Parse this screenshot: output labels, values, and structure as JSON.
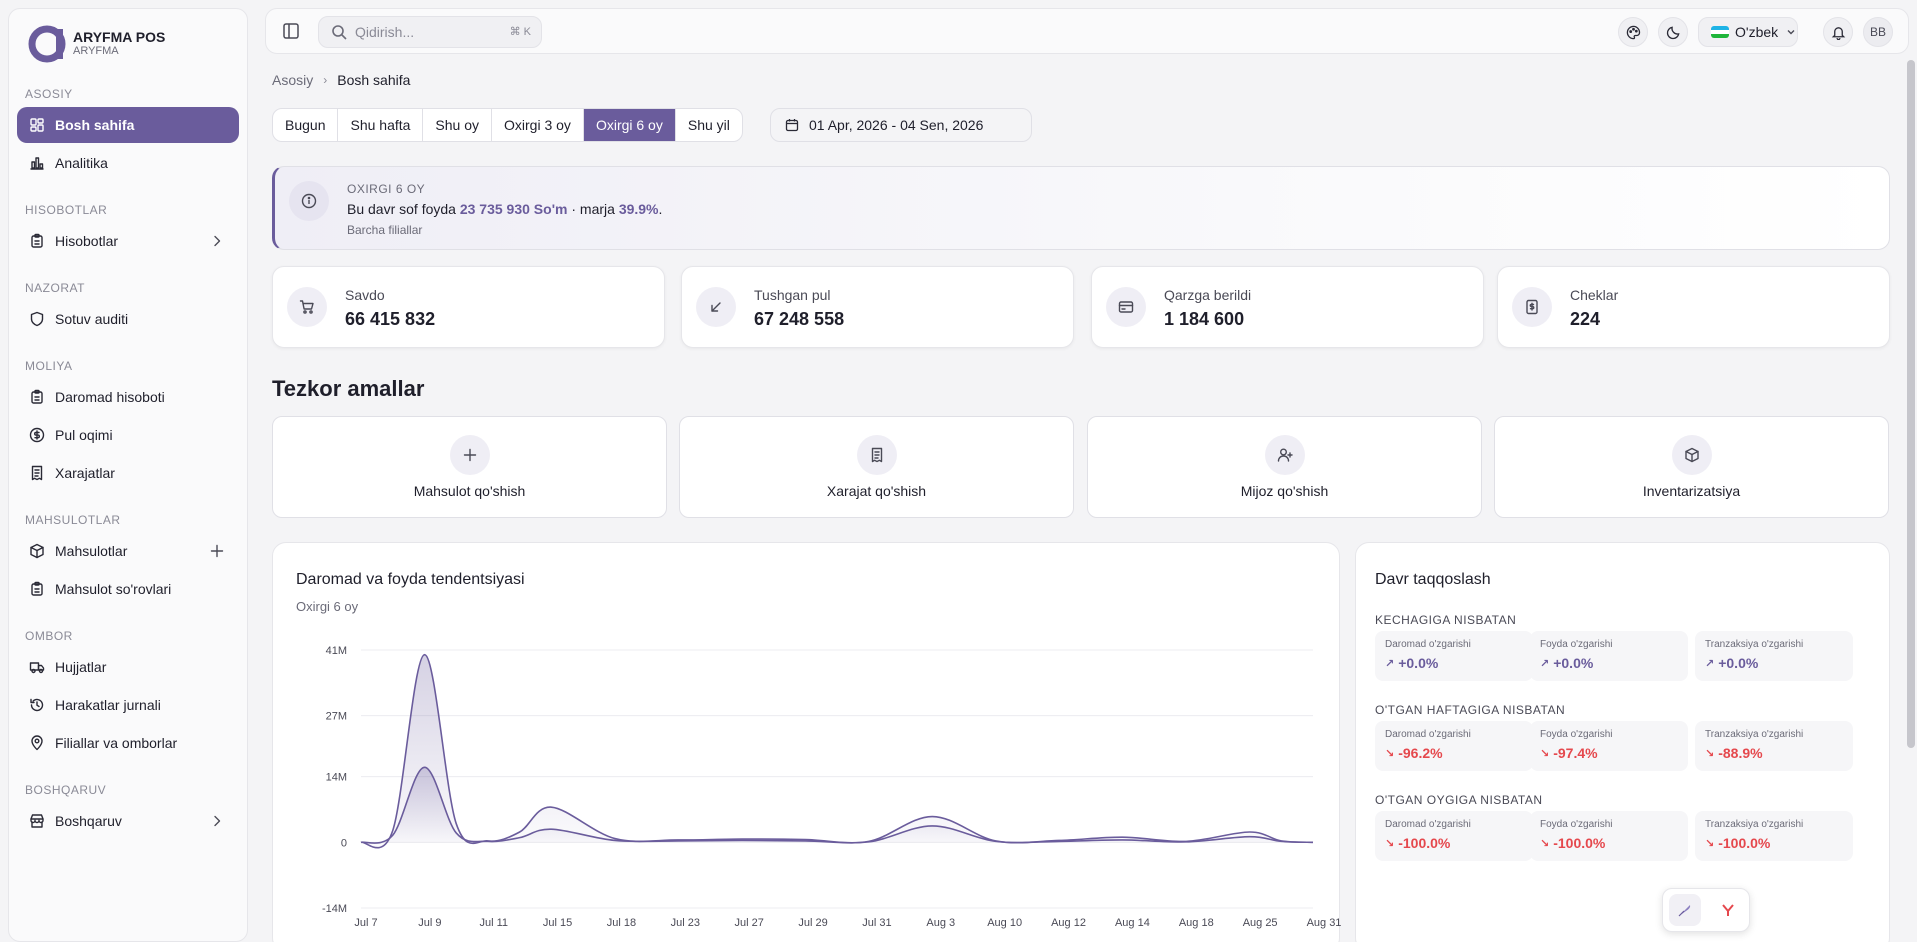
{
  "app": {
    "title": "ARYFMA POS",
    "subtitle": "ARYFMA"
  },
  "sidebar": {
    "groups": [
      {
        "label": "ASOSIY",
        "items": [
          {
            "label": "Bosh sahifa",
            "icon": "dashboard-icon",
            "active": true
          },
          {
            "label": "Analitika",
            "icon": "bar-chart-icon"
          }
        ]
      },
      {
        "label": "HISOBOTLAR",
        "items": [
          {
            "label": "Hisobotlar",
            "icon": "clipboard-icon",
            "tail": "chevron-right-icon"
          }
        ]
      },
      {
        "label": "NAZORAT",
        "items": [
          {
            "label": "Sotuv auditi",
            "icon": "shield-icon"
          }
        ]
      },
      {
        "label": "MOLIYA",
        "items": [
          {
            "label": "Daromad hisoboti",
            "icon": "clipboard-icon"
          },
          {
            "label": "Pul oqimi",
            "icon": "dollar-circle-icon"
          },
          {
            "label": "Xarajatlar",
            "icon": "receipt-icon"
          }
        ]
      },
      {
        "label": "MAHSULOTLAR",
        "items": [
          {
            "label": "Mahsulotlar",
            "icon": "box-icon",
            "tail": "plus-icon"
          },
          {
            "label": "Mahsulot so'rovlari",
            "icon": "clipboard-icon"
          }
        ]
      },
      {
        "label": "OMBOR",
        "items": [
          {
            "label": "Hujjatlar",
            "icon": "truck-icon"
          },
          {
            "label": "Harakatlar jurnali",
            "icon": "history-icon"
          },
          {
            "label": "Filiallar va omborlar",
            "icon": "map-pin-icon"
          }
        ]
      },
      {
        "label": "BOSHQARUV",
        "items": [
          {
            "label": "Boshqaruv",
            "icon": "store-icon",
            "tail": "chevron-right-icon"
          }
        ]
      }
    ]
  },
  "topbar": {
    "search_placeholder": "Qidirish...",
    "search_shortcut": "⌘ K",
    "language": "O'zbek",
    "avatar_initials": "BB"
  },
  "breadcrumb": {
    "parent": "Asosiy",
    "current": "Bosh sahifa"
  },
  "periods": {
    "options": [
      "Bugun",
      "Shu hafta",
      "Shu oy",
      "Oxirgi 3 oy",
      "Oxirgi 6 oy",
      "Shu yil"
    ],
    "selected": "Oxirgi 6 oy"
  },
  "date_range": "01 Apr, 2026 - 04 Sen, 2026",
  "banner": {
    "kicker": "OXIRGI 6 OY",
    "text_before": "Bu davr sof foyda ",
    "profit": "23 735 930 So'm",
    "text_middle": " · marja ",
    "margin": "39.9%",
    "text_after": ".",
    "sub": "Barcha filiallar"
  },
  "stats": [
    {
      "label": "Savdo",
      "value": "66 415 832",
      "icon": "cart-icon"
    },
    {
      "label": "Tushgan pul",
      "value": "67 248 558",
      "icon": "arrow-down-left-icon"
    },
    {
      "label": "Qarzga berildi",
      "value": "1 184 600",
      "icon": "credit-card-icon"
    },
    {
      "label": "Cheklar",
      "value": "224",
      "icon": "receipt-dollar-icon"
    }
  ],
  "quick_actions": {
    "title": "Tezkor amallar",
    "items": [
      {
        "label": "Mahsulot qo'shish",
        "icon": "plus-icon"
      },
      {
        "label": "Xarajat qo'shish",
        "icon": "receipt-icon"
      },
      {
        "label": "Mijoz qo'shish",
        "icon": "user-plus-icon"
      },
      {
        "label": "Inventarizatsiya",
        "icon": "box-icon"
      }
    ]
  },
  "chart_data": {
    "type": "area",
    "title": "Daromad va foyda tendentsiyasi",
    "subtitle": "Oxirgi 6 oy",
    "y_ticks": [
      "41M",
      "27M",
      "14M",
      "0",
      "-14M"
    ],
    "y_tick_values": [
      41000000,
      27000000,
      14000000,
      0,
      -14000000
    ],
    "ylim": [
      -14000000,
      41000000
    ],
    "x_ticks": [
      "Jul 7",
      "Jul 9",
      "Jul 11",
      "Jul 15",
      "Jul 18",
      "Jul 23",
      "Jul 27",
      "Jul 29",
      "Jul 31",
      "Aug 3",
      "Aug 10",
      "Aug 12",
      "Aug 14",
      "Aug 18",
      "Aug 25",
      "Aug 31"
    ],
    "grid": true,
    "color": "#6a5c9c",
    "x": [
      0,
      0.5,
      1,
      1.5,
      2,
      2.5,
      3,
      4,
      5,
      6,
      7,
      8,
      9,
      10,
      11,
      12,
      13,
      14,
      14.5,
      15
    ],
    "series": [
      {
        "values": [
          0,
          2500000,
          40000000,
          4000000,
          300000,
          2200000,
          7500000,
          800000,
          500000,
          700000,
          600000,
          200000,
          5500000,
          300000,
          400000,
          1100000,
          200000,
          2200000,
          300000,
          0
        ]
      },
      {
        "values": [
          0,
          1500000,
          16000000,
          2000000,
          200000,
          1000000,
          2800000,
          400000,
          300000,
          400000,
          300000,
          100000,
          3500000,
          200000,
          200000,
          500000,
          100000,
          1200000,
          200000,
          0
        ]
      }
    ]
  },
  "comparison": {
    "title": "Davr taqqoslash",
    "sections": [
      {
        "label": "KECHAGIGA NISBATAN",
        "tiles": [
          {
            "label": "Daromad o'zgarishi",
            "value": "+0.0%",
            "trend": "up"
          },
          {
            "label": "Foyda o'zgarishi",
            "value": "+0.0%",
            "trend": "up"
          },
          {
            "label": "Tranzaksiya o'zgarishi",
            "value": "+0.0%",
            "trend": "up"
          }
        ]
      },
      {
        "label": "O'TGAN HAFTAGIGA NISBATAN",
        "tiles": [
          {
            "label": "Daromad o'zgarishi",
            "value": "-96.2%",
            "trend": "down"
          },
          {
            "label": "Foyda o'zgarishi",
            "value": "-97.4%",
            "trend": "down"
          },
          {
            "label": "Tranzaksiya o'zgarishi",
            "value": "-88.9%",
            "trend": "down"
          }
        ]
      },
      {
        "label": "O'TGAN OYGIGA NISBATAN",
        "tiles": [
          {
            "label": "Daromad o'zgarishi",
            "value": "-100.0%",
            "trend": "down"
          },
          {
            "label": "Foyda o'zgarishi",
            "value": "-100.0%",
            "trend": "down"
          },
          {
            "label": "Tranzaksiya o'zgarishi",
            "value": "-100.0%",
            "trend": "down"
          }
        ]
      }
    ]
  },
  "colors": {
    "accent": "#6a5c9c",
    "negative": "#e5484d",
    "positive": "#6a5c9c"
  }
}
